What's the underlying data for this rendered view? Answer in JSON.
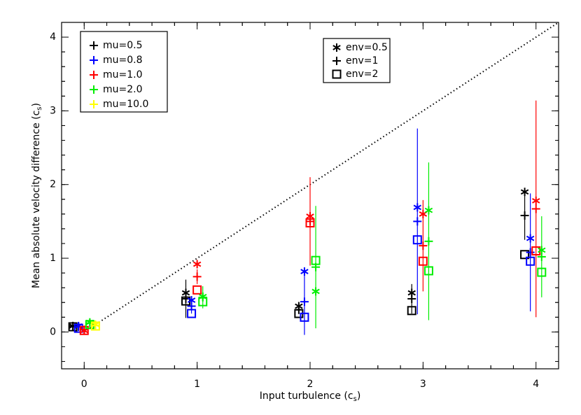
{
  "chart_data": {
    "type": "scatter",
    "xlabel": [
      "Input turbulence (c",
      "s",
      ")"
    ],
    "ylabel": [
      "Mean absolute velocity difference (c",
      "s",
      ")"
    ],
    "xlim": [
      -0.2,
      4.2
    ],
    "ylim": [
      -0.5,
      4.2
    ],
    "xticks": [
      0,
      1,
      2,
      3,
      4
    ],
    "yticks": [
      0,
      1,
      2,
      3,
      4
    ],
    "minor_ticks_per_major": 5,
    "reference_line": {
      "style": "dotted",
      "color": "#000000",
      "x": [
        0,
        4.2
      ],
      "y": [
        0,
        4.2
      ]
    },
    "markers": [
      {
        "name": "env=0.5",
        "marker": "asterisk"
      },
      {
        "name": "env=1",
        "marker": "plus"
      },
      {
        "name": "env=2",
        "marker": "square"
      }
    ],
    "series": [
      {
        "name": "mu=0.5",
        "color": "#000000",
        "x": [
          -0.1,
          0.9,
          1.9,
          2.9,
          3.9
        ],
        "values": [
          [
            0.08,
            0.53,
            0.35,
            0.53,
            1.9
          ],
          [
            0.08,
            0.45,
            0.3,
            0.45,
            1.58
          ],
          [
            0.07,
            0.42,
            0.25,
            0.29,
            1.05
          ]
        ],
        "errors": [
          0.02,
          0.26,
          0.05,
          0.2,
          0.33
        ]
      },
      {
        "name": "mu=0.8",
        "color": "#0000ff",
        "x": [
          -0.05,
          0.95,
          1.95,
          2.95,
          3.95
        ],
        "values": [
          [
            0.08,
            0.43,
            0.82,
            1.69,
            1.27
          ],
          [
            0.07,
            0.35,
            0.41,
            1.5,
            1.08
          ],
          [
            0.05,
            0.25,
            0.2,
            1.25,
            0.96
          ]
        ],
        "errors": [
          0.02,
          0.1,
          0.45,
          1.26,
          0.8
        ]
      },
      {
        "name": "mu=1.0",
        "color": "#ff0000",
        "x": [
          0,
          1,
          2,
          3,
          4
        ],
        "values": [
          [
            0.02,
            0.92,
            1.57,
            1.6,
            1.78
          ],
          [
            0.03,
            0.75,
            1.5,
            1.17,
            1.67
          ],
          [
            0.02,
            0.57,
            1.48,
            0.96,
            1.1
          ]
        ],
        "errors": [
          0.02,
          0.1,
          0.6,
          0.62,
          1.47
        ]
      },
      {
        "name": "mu=2.0",
        "color": "#00ee00",
        "x": [
          0.05,
          1.05,
          2.05,
          3.05,
          4.05
        ],
        "values": [
          [
            0.13,
            0.48,
            0.55,
            1.65,
            1.11
          ],
          [
            0.12,
            0.47,
            0.88,
            1.23,
            1.02
          ],
          [
            0.1,
            0.41,
            0.97,
            0.83,
            0.81
          ]
        ],
        "errors": [
          0.02,
          0.15,
          0.83,
          1.07,
          0.55
        ]
      },
      {
        "name": "mu=10.0",
        "color": "#ffff00",
        "x": [
          0.1
        ],
        "values": [
          [
            0.1
          ],
          [
            0.09
          ],
          [
            0.08
          ]
        ],
        "errors": [
          0.02
        ]
      }
    ]
  }
}
